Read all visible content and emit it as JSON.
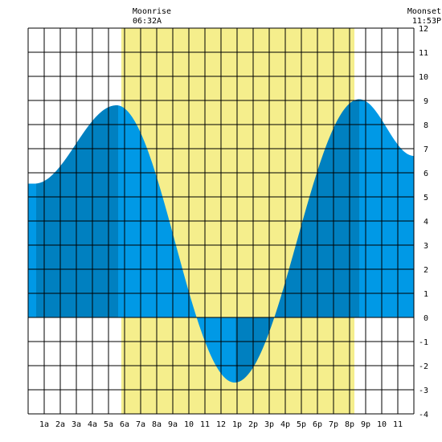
{
  "header": {
    "moonrise_label": "Moonrise",
    "moonrise_time": "06:32A",
    "moonset_label": "Moonset",
    "moonset_time": "11:53P"
  },
  "chart_data": {
    "type": "area",
    "x_unit": "hour of day",
    "xlim": [
      0,
      24
    ],
    "ylim": [
      -4,
      12
    ],
    "x_ticks": [
      {
        "x": 1,
        "label": "1a"
      },
      {
        "x": 2,
        "label": "2a"
      },
      {
        "x": 3,
        "label": "3a"
      },
      {
        "x": 4,
        "label": "4a"
      },
      {
        "x": 5,
        "label": "5a"
      },
      {
        "x": 6,
        "label": "6a"
      },
      {
        "x": 7,
        "label": "7a"
      },
      {
        "x": 8,
        "label": "8a"
      },
      {
        "x": 9,
        "label": "9a"
      },
      {
        "x": 10,
        "label": "10"
      },
      {
        "x": 11,
        "label": "11"
      },
      {
        "x": 12,
        "label": "12"
      },
      {
        "x": 13,
        "label": "1p"
      },
      {
        "x": 14,
        "label": "2p"
      },
      {
        "x": 15,
        "label": "3p"
      },
      {
        "x": 16,
        "label": "4p"
      },
      {
        "x": 17,
        "label": "5p"
      },
      {
        "x": 18,
        "label": "6p"
      },
      {
        "x": 19,
        "label": "7p"
      },
      {
        "x": 20,
        "label": "8p"
      },
      {
        "x": 21,
        "label": "9p"
      },
      {
        "x": 22,
        "label": "10"
      },
      {
        "x": 23,
        "label": "11"
      }
    ],
    "y_ticks": [
      -4,
      -3,
      -2,
      -1,
      0,
      1,
      2,
      3,
      4,
      5,
      6,
      7,
      8,
      9,
      10,
      11,
      12
    ],
    "grid": true,
    "daylight": {
      "start": 5.8,
      "end": 20.3
    },
    "tide_extremes": [
      {
        "x": 0.4,
        "y": 5.55
      },
      {
        "x": 5.5,
        "y": 8.8
      },
      {
        "x": 12.85,
        "y": -2.7
      },
      {
        "x": 20.6,
        "y": 9.05
      },
      {
        "x": 24.0,
        "y": 6.7
      }
    ],
    "shade_boundaries": [
      0.5,
      5.6,
      12.9,
      20.6
    ],
    "colors": {
      "daylight": "#f5ee8c",
      "tide_light": "#0099e6",
      "tide_dark": "#0080c0",
      "grid": "#000000"
    }
  }
}
